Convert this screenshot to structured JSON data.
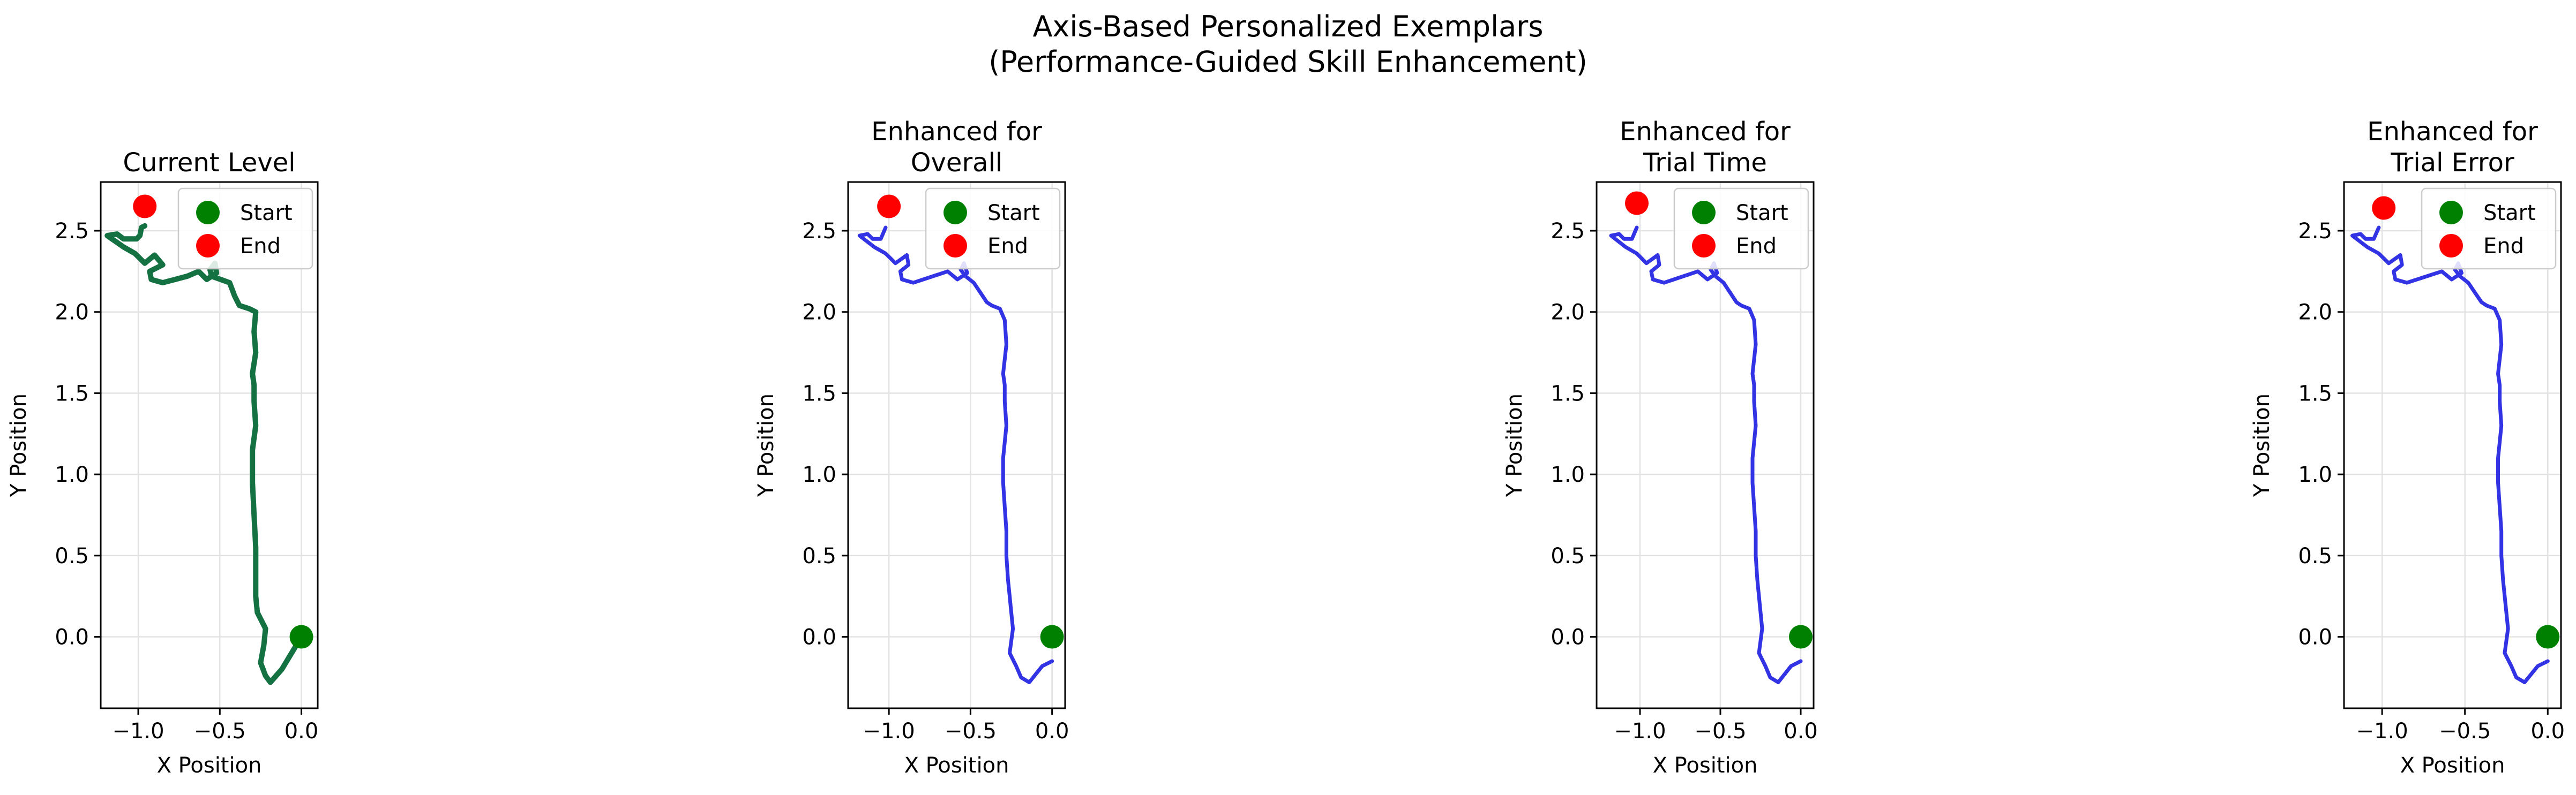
{
  "figure": {
    "title_line1": "Axis-Based Personalized Exemplars",
    "title_line2": "(Performance-Guided Skill Enhancement)"
  },
  "chart_data": [
    {
      "type": "line",
      "title": [
        "Current Level"
      ],
      "xlabel": "X Position",
      "ylabel": "Y Position",
      "xlim": [
        -1.23,
        0.1
      ],
      "ylim": [
        -0.44,
        2.8
      ],
      "xticks": [
        "-1.0",
        "-0.5",
        "0.0"
      ],
      "yticks": [
        "0.0",
        "0.5",
        "1.0",
        "1.5",
        "2.0",
        "2.5"
      ],
      "grid": true,
      "legend": {
        "position": "top-right",
        "entries": [
          "Start",
          "End"
        ]
      },
      "series": [
        {
          "color": "#137142",
          "x": [
            0.0,
            -0.06,
            -0.12,
            -0.19,
            -0.22,
            -0.25,
            -0.23,
            -0.22,
            -0.27,
            -0.28,
            -0.28,
            -0.28,
            -0.29,
            -0.3,
            -0.3,
            -0.28,
            -0.29,
            -0.29,
            -0.3,
            -0.28,
            -0.29,
            -0.28,
            -0.32,
            -0.38,
            -0.41,
            -0.44,
            -0.55,
            -0.56,
            -0.53,
            -0.52,
            -0.58,
            -0.63,
            -0.7,
            -0.85,
            -0.92,
            -0.93,
            -0.85,
            -0.9,
            -0.96,
            -1.02,
            -1.09,
            -1.19,
            -1.13,
            -1.09,
            -1.01,
            -0.99,
            -0.98,
            -0.96
          ],
          "y": [
            0.0,
            -0.1,
            -0.2,
            -0.28,
            -0.24,
            -0.16,
            -0.05,
            0.05,
            0.15,
            0.25,
            0.35,
            0.55,
            0.75,
            0.95,
            1.15,
            1.3,
            1.45,
            1.55,
            1.62,
            1.75,
            1.88,
            2.0,
            2.02,
            2.04,
            2.1,
            2.18,
            2.22,
            2.26,
            2.3,
            2.24,
            2.2,
            2.25,
            2.22,
            2.18,
            2.2,
            2.25,
            2.29,
            2.35,
            2.3,
            2.36,
            2.4,
            2.47,
            2.48,
            2.45,
            2.45,
            2.47,
            2.52,
            2.53
          ]
        }
      ],
      "markers": [
        {
          "label": "Start",
          "x": 0.0,
          "y": 0.0,
          "color": "#008000"
        },
        {
          "label": "End",
          "x": -0.96,
          "y": 2.65,
          "color": "#ff0000"
        }
      ]
    },
    {
      "type": "line",
      "title": [
        "Enhanced for",
        "Overall"
      ],
      "xlabel": "X Position",
      "ylabel": "Y Position",
      "xlim": [
        -1.25,
        0.08
      ],
      "ylim": [
        -0.44,
        2.8
      ],
      "xticks": [
        "-1.0",
        "-0.5",
        "0.0"
      ],
      "yticks": [
        "0.0",
        "0.5",
        "1.0",
        "1.5",
        "2.0",
        "2.5"
      ],
      "grid": true,
      "legend": {
        "position": "top-right",
        "entries": [
          "Start",
          "End"
        ]
      },
      "series": [
        {
          "color": "#3333e6",
          "x": [
            0.0,
            -0.06,
            -0.14,
            -0.19,
            -0.22,
            -0.26,
            -0.24,
            -0.25,
            -0.26,
            -0.27,
            -0.28,
            -0.28,
            -0.29,
            -0.3,
            -0.3,
            -0.28,
            -0.29,
            -0.29,
            -0.3,
            -0.28,
            -0.29,
            -0.32,
            -0.37,
            -0.4,
            -0.44,
            -0.48,
            -0.53,
            -0.56,
            -0.54,
            -0.52,
            -0.58,
            -0.64,
            -0.73,
            -0.85,
            -0.92,
            -0.93,
            -0.88,
            -0.89,
            -0.96,
            -1.02,
            -1.09,
            -1.18,
            -1.13,
            -1.1,
            -1.05,
            -1.02
          ],
          "y": [
            -0.15,
            -0.18,
            -0.28,
            -0.25,
            -0.18,
            -0.1,
            0.05,
            0.15,
            0.25,
            0.35,
            0.5,
            0.65,
            0.8,
            0.95,
            1.1,
            1.3,
            1.45,
            1.55,
            1.62,
            1.8,
            1.95,
            2.02,
            2.04,
            2.06,
            2.12,
            2.18,
            2.22,
            2.26,
            2.3,
            2.24,
            2.2,
            2.25,
            2.22,
            2.18,
            2.2,
            2.25,
            2.29,
            2.35,
            2.3,
            2.36,
            2.4,
            2.47,
            2.48,
            2.45,
            2.45,
            2.52
          ]
        }
      ],
      "markers": [
        {
          "label": "Start",
          "x": 0.0,
          "y": 0.0,
          "color": "#008000"
        },
        {
          "label": "End",
          "x": -1.0,
          "y": 2.65,
          "color": "#ff0000"
        }
      ]
    },
    {
      "type": "line",
      "title": [
        "Enhanced for",
        "Trial Time"
      ],
      "xlabel": "X Position",
      "ylabel": "Y Position",
      "xlim": [
        -1.27,
        0.08
      ],
      "ylim": [
        -0.44,
        2.8
      ],
      "xticks": [
        "-1.0",
        "-0.5",
        "0.0"
      ],
      "yticks": [
        "0.0",
        "0.5",
        "1.0",
        "1.5",
        "2.0",
        "2.5"
      ],
      "grid": true,
      "legend": {
        "position": "top-right",
        "entries": [
          "Start",
          "End"
        ]
      },
      "series": [
        {
          "color": "#3333e6",
          "x": [
            0.0,
            -0.06,
            -0.14,
            -0.19,
            -0.22,
            -0.26,
            -0.24,
            -0.25,
            -0.26,
            -0.27,
            -0.28,
            -0.28,
            -0.29,
            -0.3,
            -0.3,
            -0.28,
            -0.29,
            -0.29,
            -0.3,
            -0.28,
            -0.29,
            -0.32,
            -0.37,
            -0.4,
            -0.44,
            -0.48,
            -0.53,
            -0.56,
            -0.54,
            -0.52,
            -0.58,
            -0.64,
            -0.73,
            -0.85,
            -0.92,
            -0.93,
            -0.88,
            -0.89,
            -0.96,
            -1.02,
            -1.09,
            -1.18,
            -1.13,
            -1.1,
            -1.05,
            -1.02
          ],
          "y": [
            -0.15,
            -0.18,
            -0.28,
            -0.25,
            -0.18,
            -0.1,
            0.05,
            0.15,
            0.25,
            0.35,
            0.5,
            0.65,
            0.8,
            0.95,
            1.1,
            1.3,
            1.45,
            1.55,
            1.62,
            1.8,
            1.95,
            2.02,
            2.04,
            2.06,
            2.12,
            2.18,
            2.22,
            2.26,
            2.3,
            2.24,
            2.2,
            2.25,
            2.22,
            2.18,
            2.2,
            2.25,
            2.29,
            2.35,
            2.3,
            2.36,
            2.4,
            2.47,
            2.48,
            2.45,
            2.45,
            2.52
          ]
        }
      ],
      "markers": [
        {
          "label": "Start",
          "x": 0.0,
          "y": 0.0,
          "color": "#008000"
        },
        {
          "label": "End",
          "x": -1.02,
          "y": 2.67,
          "color": "#ff0000"
        }
      ]
    },
    {
      "type": "line",
      "title": [
        "Enhanced for",
        "Trial Error"
      ],
      "xlabel": "X Position",
      "ylabel": "Y Position",
      "xlim": [
        -1.23,
        0.08
      ],
      "ylim": [
        -0.44,
        2.8
      ],
      "xticks": [
        "-1.0",
        "-0.5",
        "0.0"
      ],
      "yticks": [
        "0.0",
        "0.5",
        "1.0",
        "1.5",
        "2.0",
        "2.5"
      ],
      "grid": true,
      "legend": {
        "position": "top-right",
        "entries": [
          "Start",
          "End"
        ]
      },
      "series": [
        {
          "color": "#3333e6",
          "x": [
            0.0,
            -0.06,
            -0.14,
            -0.19,
            -0.22,
            -0.26,
            -0.24,
            -0.25,
            -0.26,
            -0.27,
            -0.28,
            -0.28,
            -0.29,
            -0.3,
            -0.3,
            -0.28,
            -0.29,
            -0.29,
            -0.3,
            -0.28,
            -0.29,
            -0.32,
            -0.37,
            -0.4,
            -0.44,
            -0.48,
            -0.53,
            -0.56,
            -0.54,
            -0.52,
            -0.58,
            -0.64,
            -0.73,
            -0.85,
            -0.92,
            -0.93,
            -0.88,
            -0.89,
            -0.96,
            -1.02,
            -1.09,
            -1.18,
            -1.13,
            -1.1,
            -1.05,
            -1.02
          ],
          "y": [
            -0.15,
            -0.18,
            -0.28,
            -0.25,
            -0.18,
            -0.1,
            0.05,
            0.15,
            0.25,
            0.35,
            0.5,
            0.65,
            0.8,
            0.95,
            1.1,
            1.3,
            1.45,
            1.55,
            1.62,
            1.8,
            1.95,
            2.02,
            2.04,
            2.06,
            2.12,
            2.18,
            2.22,
            2.26,
            2.3,
            2.24,
            2.2,
            2.25,
            2.22,
            2.18,
            2.2,
            2.25,
            2.29,
            2.35,
            2.3,
            2.36,
            2.4,
            2.47,
            2.48,
            2.45,
            2.45,
            2.52
          ]
        }
      ],
      "markers": [
        {
          "label": "Start",
          "x": 0.0,
          "y": 0.0,
          "color": "#008000"
        },
        {
          "label": "End",
          "x": -0.99,
          "y": 2.64,
          "color": "#ff0000"
        }
      ]
    }
  ]
}
